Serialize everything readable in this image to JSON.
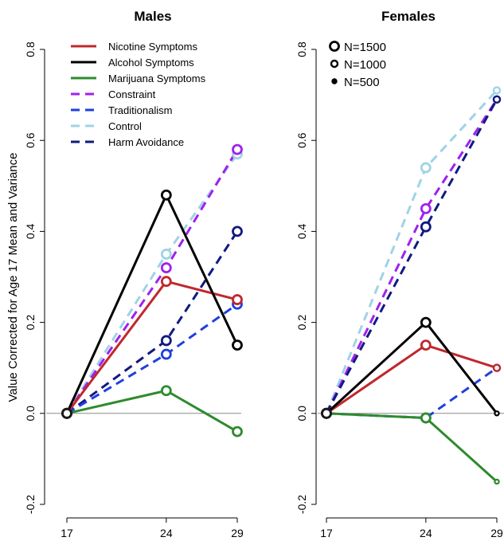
{
  "chart_data": [
    {
      "type": "line",
      "title": "Males",
      "ylabel": "Value Corrected for Age 17 Mean and Variance",
      "xlabel": "",
      "x": [
        17,
        24,
        29
      ],
      "x_ticks": [
        "17",
        "24",
        "29"
      ],
      "ylim": [
        -0.2,
        0.8
      ],
      "y_ticks": [
        "-0.2",
        "0.0",
        "0.2",
        "0.4",
        "0.6",
        "0.8"
      ],
      "grid": false,
      "reference_line": 0,
      "legend_placement": "top-left",
      "series": [
        {
          "name": "Nicotine Symptoms",
          "color": "#c0282d",
          "dash": "solid",
          "values": [
            0.0,
            0.29,
            0.25
          ],
          "n_size": [
            1500,
            1500,
            1500
          ]
        },
        {
          "name": "Alcohol Symptoms",
          "color": "#000000",
          "dash": "solid",
          "values": [
            0.0,
            0.48,
            0.15
          ],
          "n_size": [
            1500,
            1500,
            1500
          ]
        },
        {
          "name": "Marijuana Symptoms",
          "color": "#2e8b2e",
          "dash": "solid",
          "values": [
            0.0,
            0.05,
            -0.04
          ],
          "n_size": [
            1500,
            1500,
            1500
          ]
        },
        {
          "name": "Constraint",
          "color": "#a020f0",
          "dash": "dashed",
          "values": [
            0.0,
            0.32,
            0.58
          ],
          "n_size": [
            1500,
            1500,
            1500
          ]
        },
        {
          "name": "Traditionalism",
          "color": "#1f3fe0",
          "dash": "dashed",
          "values": [
            0.0,
            0.13,
            0.24
          ],
          "n_size": [
            1500,
            1500,
            1500
          ]
        },
        {
          "name": "Control",
          "color": "#9fd3e6",
          "dash": "dashed",
          "values": [
            0.0,
            0.35,
            0.57
          ],
          "n_size": [
            1500,
            1500,
            1500
          ]
        },
        {
          "name": "Harm Avoidance",
          "color": "#101a80",
          "dash": "dashed",
          "values": [
            0.0,
            0.16,
            0.4
          ],
          "n_size": [
            1500,
            1500,
            1500
          ]
        }
      ]
    },
    {
      "type": "line",
      "title": "Females",
      "ylabel": "",
      "xlabel": "",
      "x": [
        17,
        24,
        29
      ],
      "x_ticks": [
        "17",
        "24",
        "29"
      ],
      "ylim": [
        -0.2,
        0.8
      ],
      "y_ticks": [
        "-0.2",
        "0.0",
        "0.2",
        "0.4",
        "0.6",
        "0.8"
      ],
      "grid": false,
      "reference_line": 0,
      "legend_placement": "top-left",
      "size_legend": [
        {
          "label": "N=1500",
          "n": 1500
        },
        {
          "label": "N=1000",
          "n": 1000
        },
        {
          "label": "N=500",
          "n": 500
        }
      ],
      "series": [
        {
          "name": "Nicotine Symptoms",
          "color": "#c0282d",
          "dash": "solid",
          "values": [
            0.0,
            0.15,
            0.1
          ],
          "n_size": [
            1500,
            1500,
            1000
          ]
        },
        {
          "name": "Alcohol Symptoms",
          "color": "#000000",
          "dash": "solid",
          "values": [
            0.0,
            0.2,
            0.0
          ],
          "n_size": [
            1500,
            1500,
            500
          ]
        },
        {
          "name": "Marijuana Symptoms",
          "color": "#2e8b2e",
          "dash": "solid",
          "values": [
            0.0,
            -0.01,
            -0.15
          ],
          "n_size": [
            1500,
            1500,
            500
          ]
        },
        {
          "name": "Constraint",
          "color": "#a020f0",
          "dash": "dashed",
          "values": [
            0.0,
            0.45,
            0.69
          ],
          "n_size": [
            1500,
            1500,
            1000
          ]
        },
        {
          "name": "Traditionalism",
          "color": "#1f3fe0",
          "dash": "dashed",
          "values": [
            0.0,
            -0.01,
            0.1
          ],
          "n_size": [
            1500,
            1500,
            1000
          ]
        },
        {
          "name": "Control",
          "color": "#9fd3e6",
          "dash": "dashed",
          "values": [
            0.0,
            0.54,
            0.71
          ],
          "n_size": [
            1500,
            1500,
            1000
          ]
        },
        {
          "name": "Harm Avoidance",
          "color": "#101a80",
          "dash": "dashed",
          "values": [
            0.0,
            0.41,
            0.69
          ],
          "n_size": [
            1500,
            1500,
            1000
          ]
        }
      ]
    }
  ]
}
